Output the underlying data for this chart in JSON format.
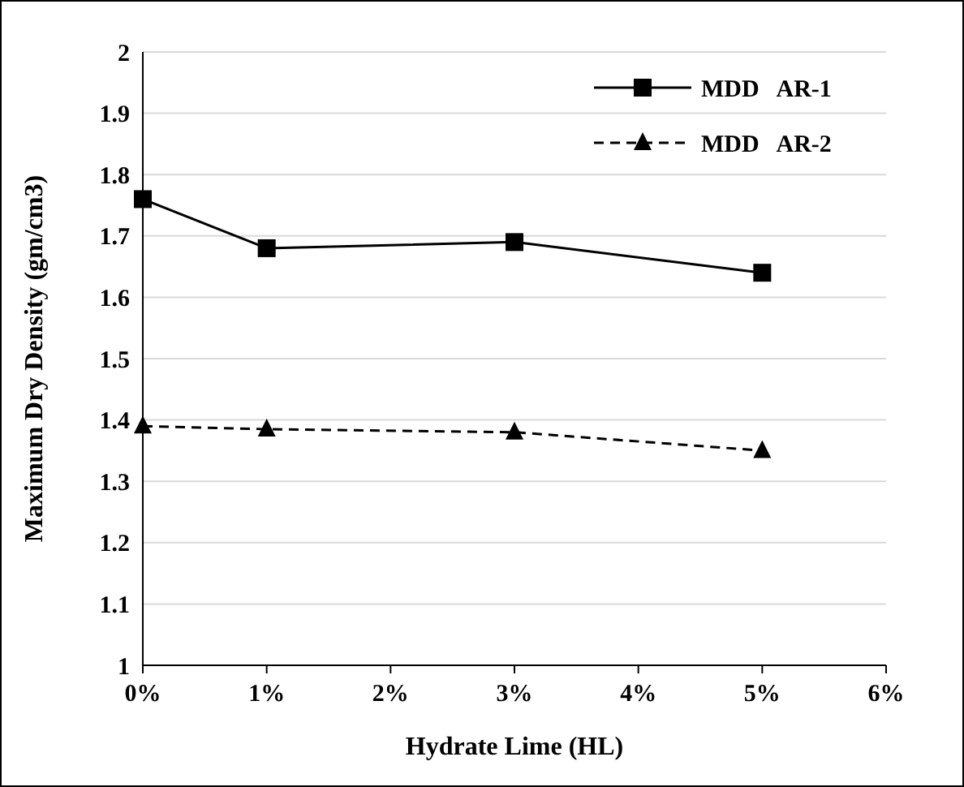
{
  "chart_data": {
    "type": "line",
    "xlabel": "Hydrate Lime (HL)",
    "ylabel": "Maximum Dry Density (gm/cm3)",
    "x": [
      0,
      1,
      3,
      5
    ],
    "series": [
      {
        "name": "MDD   AR-1",
        "color": "#000000",
        "values": [
          1.76,
          1.68,
          1.69,
          1.64
        ],
        "marker": "square",
        "line_style": "solid"
      },
      {
        "name": "MDD   AR-2",
        "color": "#000000",
        "values": [
          1.39,
          1.385,
          1.38,
          1.35
        ],
        "marker": "triangle",
        "line_style": "dashed"
      }
    ],
    "xlim": [
      0,
      6
    ],
    "xticks": [
      {
        "value": 0,
        "label": "0%"
      },
      {
        "value": 1,
        "label": "1%"
      },
      {
        "value": 2,
        "label": "2%"
      },
      {
        "value": 3,
        "label": "3%"
      },
      {
        "value": 4,
        "label": "4%"
      },
      {
        "value": 5,
        "label": "5%"
      },
      {
        "value": 6,
        "label": "6%"
      }
    ],
    "ylim": [
      1,
      2
    ],
    "yticks": [
      1,
      {
        "value": 1.1,
        "label": "1.1"
      },
      {
        "value": 1.2,
        "label": "1.2"
      },
      {
        "value": 1.3,
        "label": "1.3"
      },
      {
        "value": 1.4,
        "label": "1.4"
      },
      {
        "value": 1.5,
        "label": "1.5"
      },
      {
        "value": 1.6,
        "label": "1.6"
      },
      {
        "value": 1.7,
        "label": "1.7"
      },
      {
        "value": 1.8,
        "label": "1.8"
      },
      {
        "value": 1.9,
        "label": "1.9"
      },
      2
    ],
    "grid": "y",
    "legend": "top right"
  }
}
